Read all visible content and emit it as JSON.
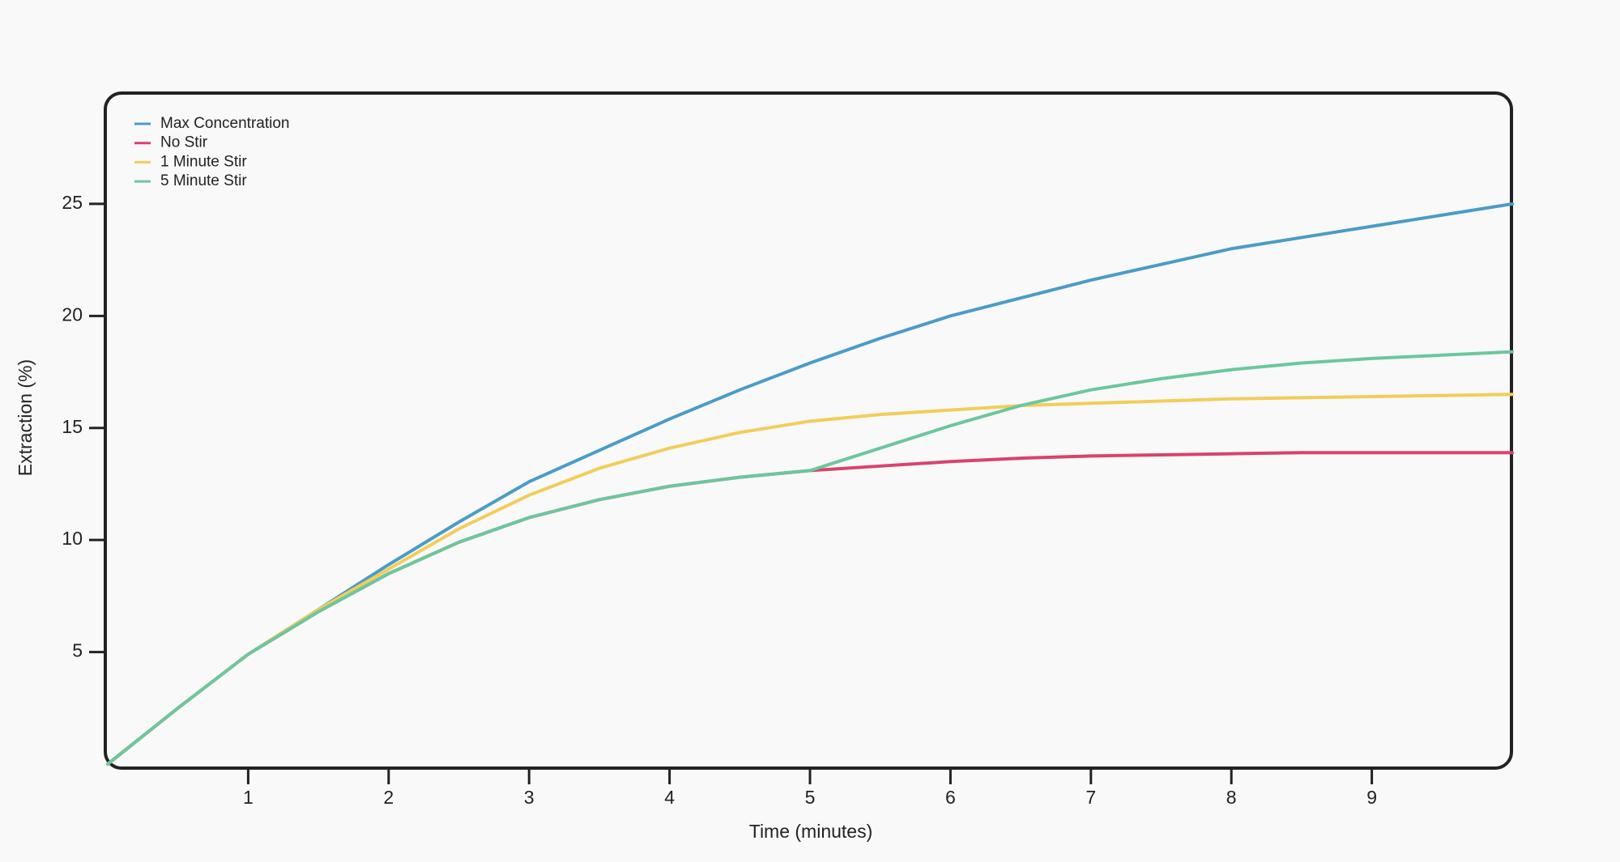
{
  "chart_data": {
    "type": "line",
    "x_label": "Time (minutes)",
    "y_label": "Extraction (%)",
    "x": [
      0,
      0.5,
      1,
      1.5,
      2,
      2.5,
      3,
      3.5,
      4,
      4.5,
      5,
      5.5,
      6,
      6.5,
      7,
      7.5,
      8,
      8.5,
      9,
      9.5,
      10
    ],
    "series": [
      {
        "name": "Max Concentration",
        "color": "#4a9cc7",
        "values": [
          0,
          2.5,
          4.9,
          6.9,
          8.9,
          10.8,
          12.6,
          14.0,
          15.4,
          16.7,
          17.9,
          19.0,
          20.0,
          20.8,
          21.6,
          22.3,
          23.0,
          23.5,
          24.0,
          24.5,
          25.0
        ]
      },
      {
        "name": "No Stir",
        "color": "#d9426e",
        "values": [
          0,
          2.5,
          4.9,
          6.8,
          8.5,
          9.9,
          11.0,
          11.8,
          12.4,
          12.8,
          13.1,
          13.3,
          13.5,
          13.65,
          13.75,
          13.8,
          13.85,
          13.9,
          13.9,
          13.9,
          13.9
        ]
      },
      {
        "name": "1 Minute Stir",
        "color": "#f2cd5a",
        "values": [
          0,
          2.5,
          4.9,
          6.9,
          8.7,
          10.5,
          12.0,
          13.2,
          14.1,
          14.8,
          15.3,
          15.6,
          15.8,
          16.0,
          16.1,
          16.2,
          16.3,
          16.35,
          16.4,
          16.45,
          16.5
        ]
      },
      {
        "name": "5 Minute Stir",
        "color": "#6cc79c",
        "values": [
          0,
          2.5,
          4.9,
          6.8,
          8.5,
          9.9,
          11.0,
          11.8,
          12.4,
          12.8,
          13.1,
          14.1,
          15.1,
          16.0,
          16.7,
          17.2,
          17.6,
          17.9,
          18.1,
          18.25,
          18.4
        ]
      }
    ],
    "xlim": [
      0,
      10
    ],
    "ylim": [
      0,
      30
    ],
    "xticks": [
      1,
      2,
      3,
      4,
      5,
      6,
      7,
      8,
      9
    ],
    "yticks": [
      5,
      10,
      15,
      20,
      25
    ],
    "legend": "top-left",
    "grid": false
  }
}
